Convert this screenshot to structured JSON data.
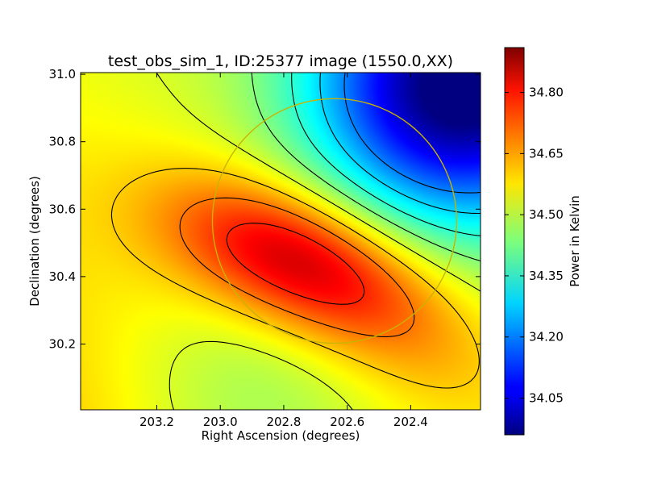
{
  "chart_data": {
    "type": "heatmap",
    "title": "test_obs_sim_1, ID:25377 image (1550.0,XX)",
    "xlabel": "Right Ascension (degrees)",
    "ylabel": "Declination (degrees)",
    "x_range": [
      203.44,
      202.18
    ],
    "y_range": [
      30.005,
      31.005
    ],
    "x_ticks": [
      203.2,
      203.0,
      202.8,
      202.6,
      202.4
    ],
    "x_tick_labels": [
      "203.2",
      "203.0",
      "202.8",
      "202.6",
      "202.4"
    ],
    "y_ticks": [
      30.2,
      30.4,
      30.6,
      30.8,
      31.0
    ],
    "y_tick_labels": [
      "30.2",
      "30.4",
      "30.6",
      "30.8",
      "31.0"
    ],
    "colorbar": {
      "label": "Power in Kelvin",
      "range": [
        33.96,
        34.91
      ],
      "ticks": [
        34.05,
        34.2,
        34.35,
        34.5,
        34.65,
        34.8
      ],
      "tick_labels": [
        "34.05",
        "34.20",
        "34.35",
        "34.50",
        "34.65",
        "34.80"
      ],
      "colormap": "jet"
    },
    "field": {
      "base": 34.52,
      "peaks": [
        {
          "ra": 202.8,
          "dec": 30.48,
          "amplitude": 0.26
        },
        {
          "ra": 202.55,
          "dec": 30.33,
          "amplitude": 0.12
        },
        {
          "ra": 202.28,
          "dec": 30.1,
          "amplitude": 0.05
        }
      ],
      "troughs": [
        {
          "ra": 202.25,
          "dec": 30.95,
          "amplitude": 0.55
        },
        {
          "ra": 202.9,
          "dec": 30.02,
          "amplitude": 0.1
        }
      ],
      "tilt": {
        "ra_center": 202.55,
        "ra_per_deg": 0.8,
        "dec_center": 30.5,
        "dec_per_deg": 0.9
      }
    },
    "contour_levels": [
      34.2,
      34.28,
      34.36,
      34.44,
      34.52,
      34.6,
      34.68,
      34.76,
      34.84
    ],
    "circle": {
      "center_ra": 202.64,
      "center_dec": 30.565,
      "radius_deg": 0.37,
      "color": "#c8b400"
    },
    "contour_color": "#000000"
  }
}
